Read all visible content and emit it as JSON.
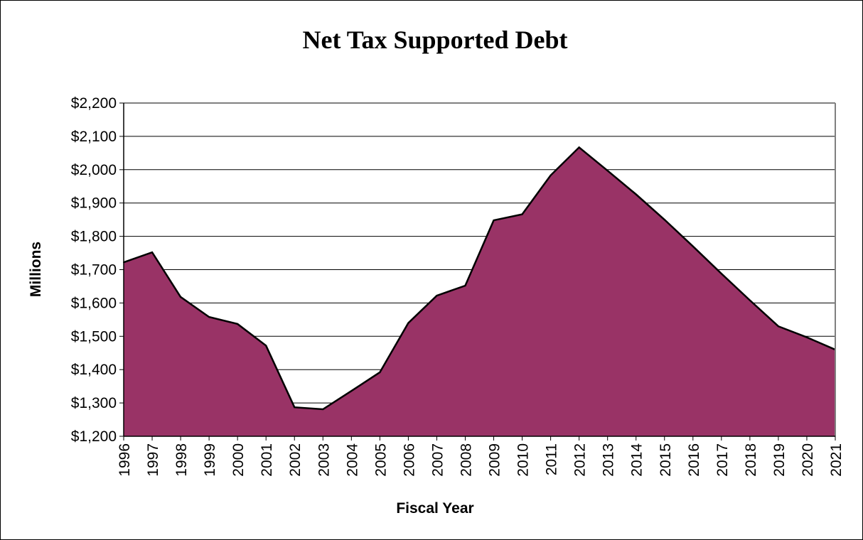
{
  "chart_data": {
    "type": "area",
    "title": "Net Tax Supported Debt",
    "xlabel": "Fiscal Year",
    "ylabel": "Millions",
    "ylim": [
      1200,
      2200
    ],
    "ytick_step": 100,
    "ytick_labels": [
      "$1,200",
      "$1,300",
      "$1,400",
      "$1,500",
      "$1,600",
      "$1,700",
      "$1,800",
      "$1,900",
      "$2,000",
      "$2,100",
      "$2,200"
    ],
    "grid": "horizontal",
    "categories": [
      "1996",
      "1997",
      "1998",
      "1999",
      "2000",
      "2001",
      "2002",
      "2003",
      "2004",
      "2005",
      "2006",
      "2007",
      "2008",
      "2009",
      "2010",
      "2011",
      "2012",
      "2013",
      "2014",
      "2015",
      "2016",
      "2017",
      "2018",
      "2019",
      "2020",
      "2021"
    ],
    "values": [
      1722,
      1752,
      1618,
      1558,
      1537,
      1472,
      1287,
      1281,
      1336,
      1392,
      1540,
      1622,
      1652,
      1848,
      1866,
      1983,
      2067,
      1997,
      1926,
      1850,
      1770,
      1688,
      1608,
      1530,
      1497,
      1460
    ],
    "colors": {
      "fill": "#993366",
      "outline": "#000000",
      "grid": "#000000",
      "plot_border": "#808080"
    }
  }
}
